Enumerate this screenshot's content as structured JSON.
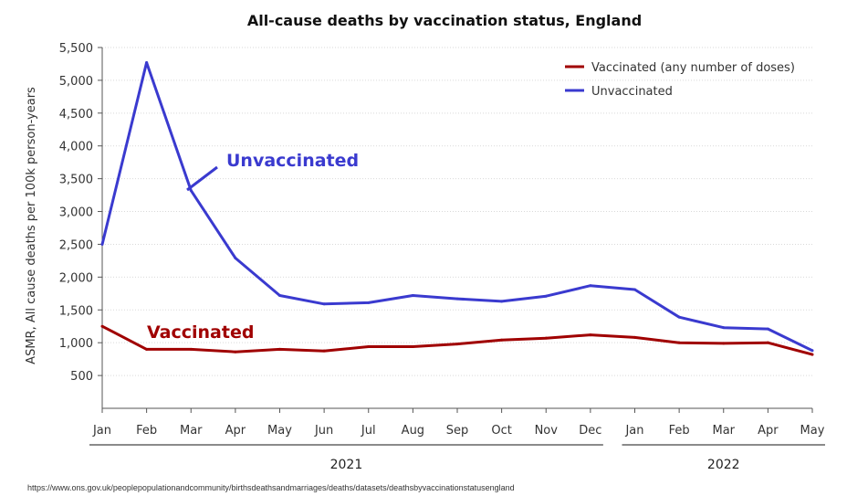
{
  "chart_data": {
    "type": "line",
    "title": "All-cause deaths by vaccination status, England",
    "ylabel": "ASMR, All cause deaths per 100k person-years",
    "ylim": [
      0,
      5500
    ],
    "yticks": [
      500,
      1000,
      1500,
      2000,
      2500,
      3000,
      3500,
      4000,
      4500,
      5000,
      5500
    ],
    "ytick_labels": [
      "500",
      "1,000",
      "1,500",
      "2,000",
      "2,500",
      "3,000",
      "3,500",
      "4,000",
      "4,500",
      "5,000",
      "5,500"
    ],
    "categories": [
      "Jan",
      "Feb",
      "Mar",
      "Apr",
      "May",
      "Jun",
      "Jul",
      "Aug",
      "Sep",
      "Oct",
      "Nov",
      "Dec",
      "Jan",
      "Feb",
      "Mar",
      "Apr",
      "May"
    ],
    "year_groups": [
      {
        "label": "2021",
        "start": 0,
        "end": 11
      },
      {
        "label": "2022",
        "start": 12,
        "end": 16
      }
    ],
    "series": [
      {
        "name": "Vaccinated (any number of doses)",
        "color": "#A00000",
        "values": [
          1250,
          900,
          900,
          860,
          900,
          875,
          940,
          940,
          980,
          1040,
          1070,
          1120,
          1080,
          1000,
          990,
          1000,
          820
        ]
      },
      {
        "name": "Unvaccinated",
        "color": "#3A3ACF",
        "values": [
          2500,
          5270,
          3320,
          2290,
          1720,
          1590,
          1610,
          1720,
          1670,
          1630,
          1710,
          1870,
          1810,
          1390,
          1230,
          1210,
          880
        ]
      }
    ],
    "annotations": [
      {
        "text": "Unvaccinated",
        "color": "#3A3ACF"
      },
      {
        "text": "Vaccinated",
        "color": "#A00000"
      }
    ],
    "legend_position": "top-right",
    "grid": true
  },
  "source": "https://www.ons.gov.uk/peoplepopulationandcommunity/birthsdeathsandmarriages/deaths/datasets/deathsbyvaccinationstatusengland"
}
